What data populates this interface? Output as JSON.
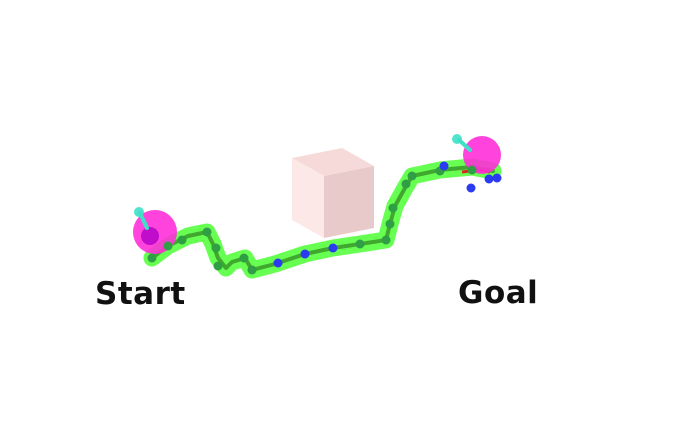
{
  "labels": {
    "start": "Start",
    "goal": "Goal"
  },
  "colors": {
    "path_glow": "#4cff32",
    "path_core": "#3c9e2a",
    "waypoint": "#2f9e44",
    "waypoint_alt": "#2b3cf0",
    "robot_body": "#ff2fd8",
    "robot_handle": "#3fe0c8",
    "obstacle_front": "#fde8e8",
    "obstacle_top": "#f6dada",
    "obstacle_side": "#e9caca",
    "label_text": "#111111"
  },
  "icons": {
    "start_robot": "magenta-sphere-robot-icon",
    "goal_robot": "magenta-sphere-robot-icon",
    "obstacle": "cube-obstacle-icon"
  }
}
